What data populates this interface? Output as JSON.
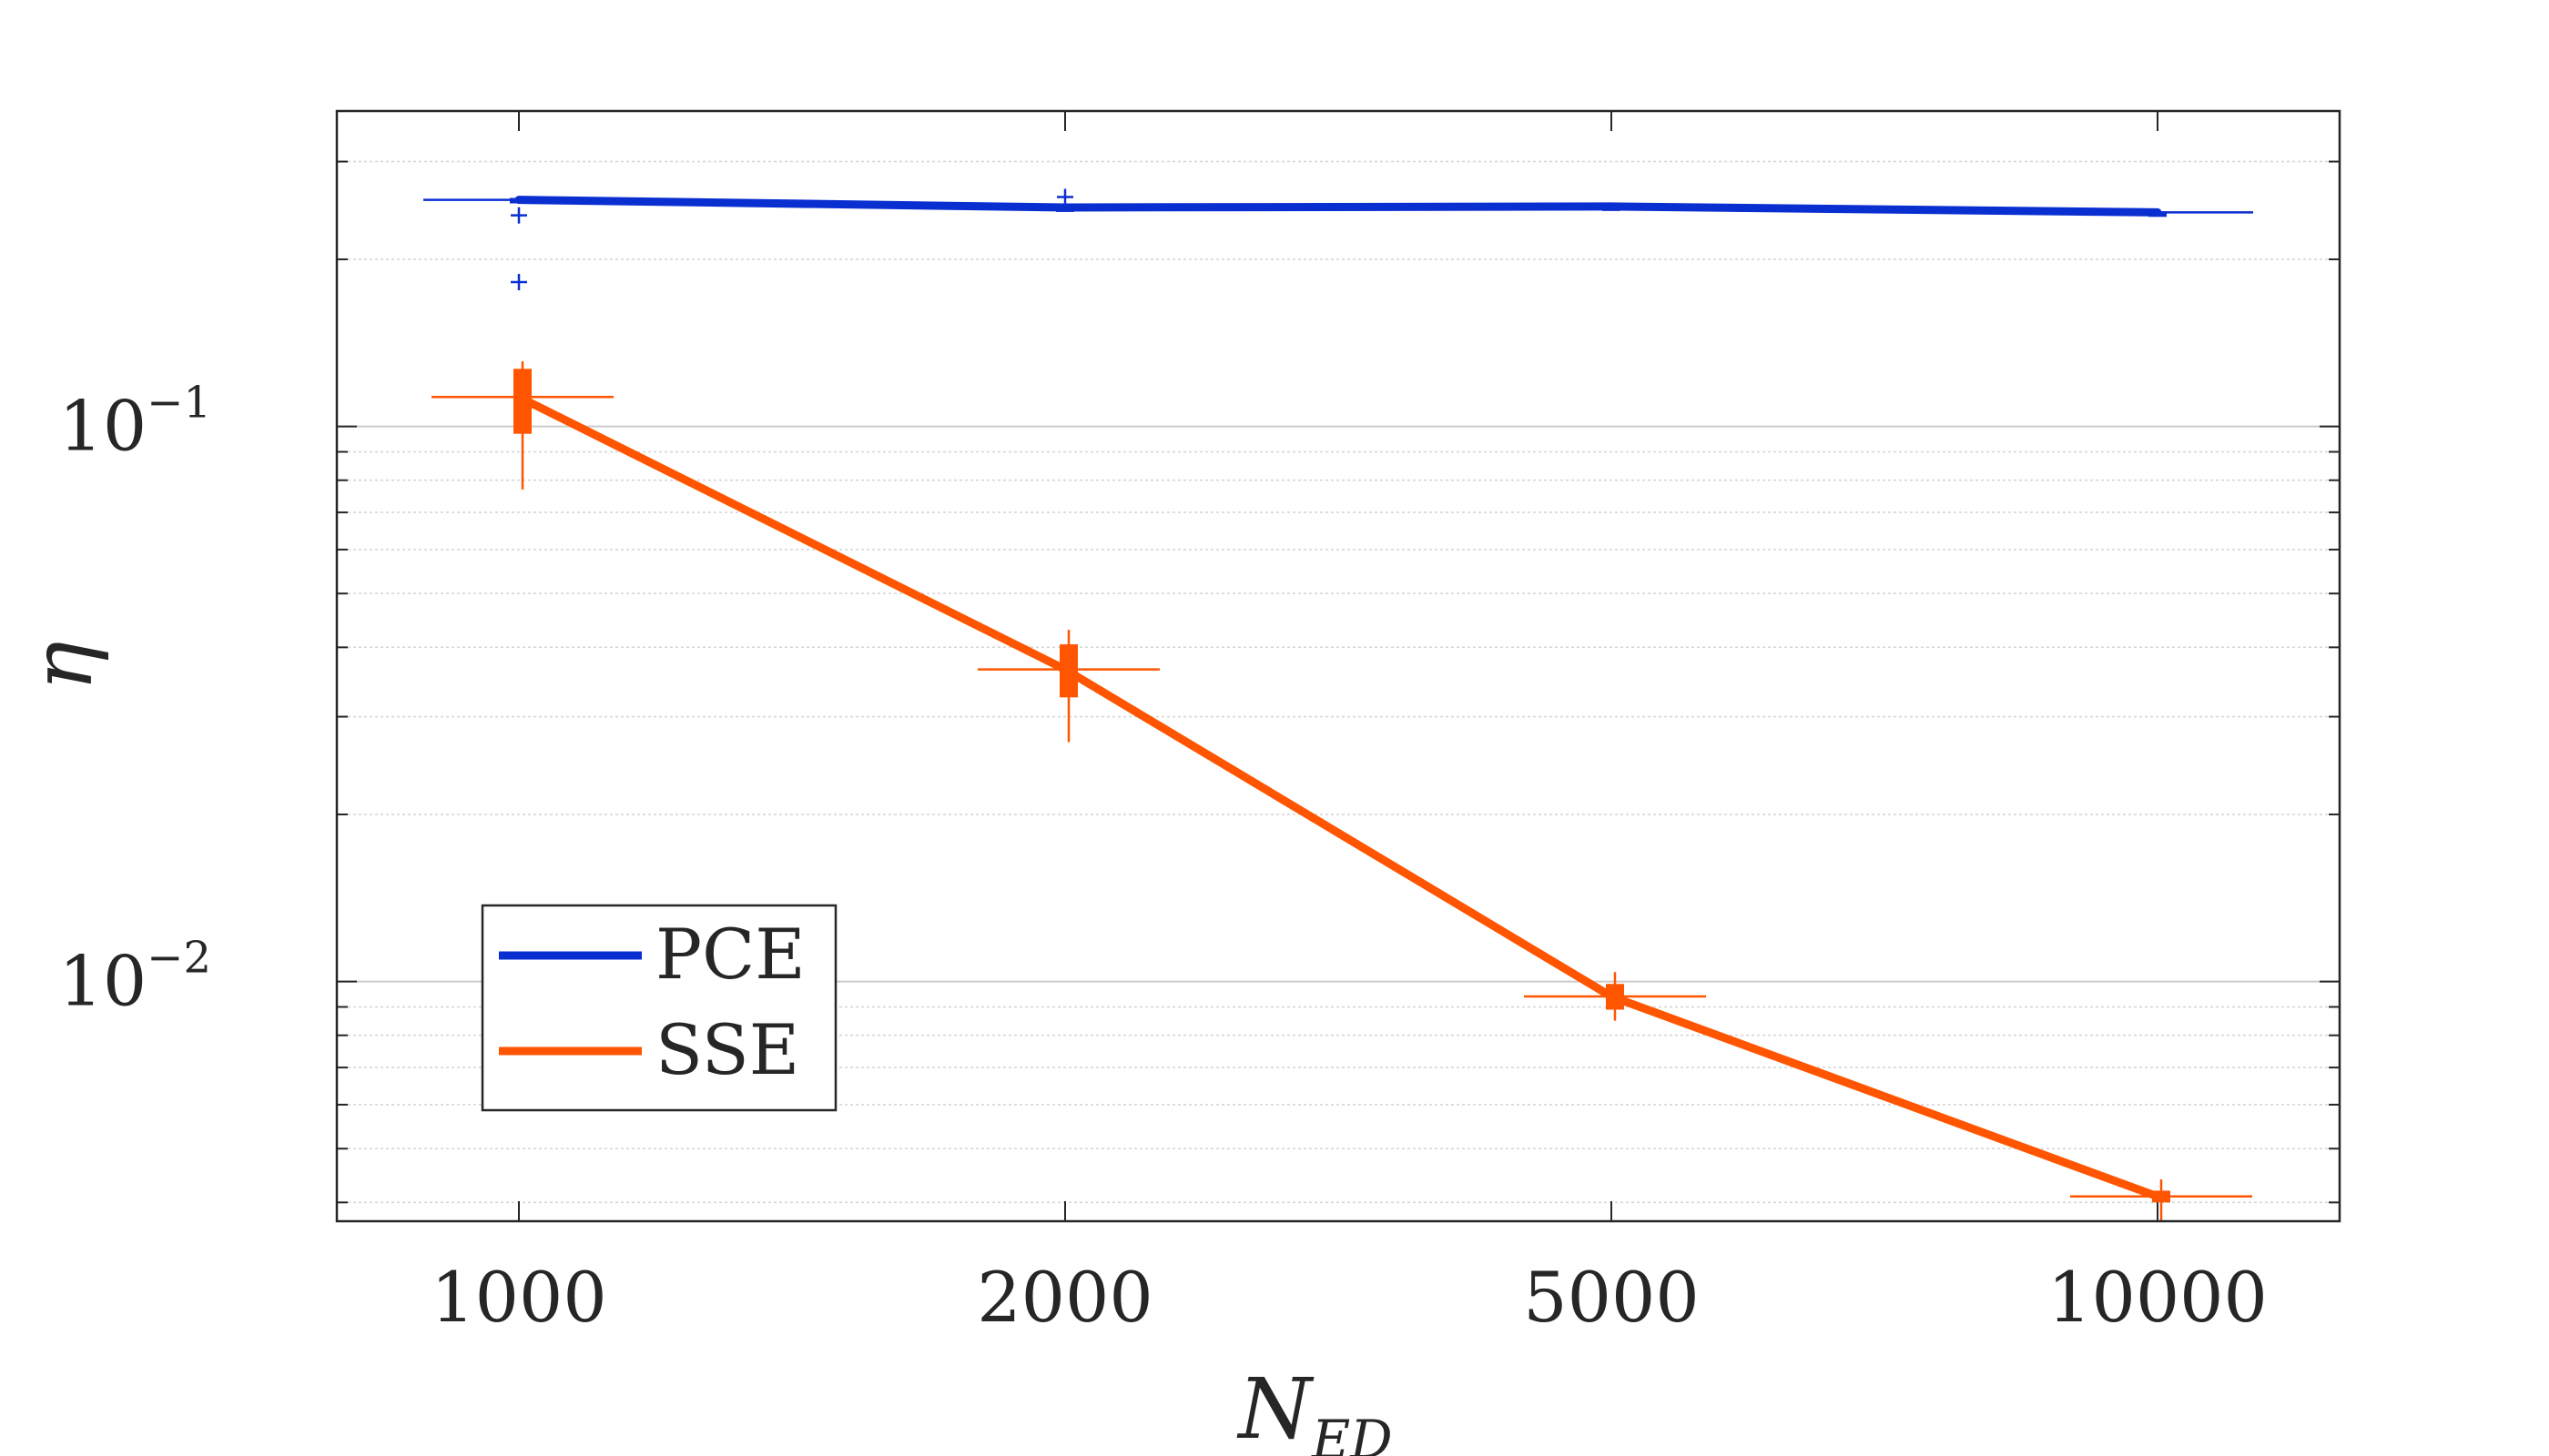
{
  "chart_data": {
    "type": "line",
    "xlabel": "N",
    "xlabel_subscript": "ED",
    "ylabel": "η",
    "y_scale": "log",
    "ylim": [
      0.0037,
      0.37
    ],
    "categories": [
      "1000",
      "2000",
      "5000",
      "10000"
    ],
    "y_ticks": [
      {
        "value": 0.1,
        "base": "10",
        "exp": "−1"
      },
      {
        "value": 0.01,
        "base": "10",
        "exp": "−2"
      }
    ],
    "grid": "y",
    "legend_position": "lower-left",
    "series": [
      {
        "name": "PCE",
        "color": "#0a2fd1",
        "values": [
          0.256,
          0.248,
          0.249,
          0.243
        ],
        "boxes": [
          {
            "q1": 0.254,
            "median": 0.256,
            "q3": 0.258,
            "whisker_low": 0.254,
            "whisker_high": 0.258,
            "outliers": [
              0.24,
              0.182
            ]
          },
          {
            "q1": 0.247,
            "median": 0.248,
            "q3": 0.249,
            "whisker_low": 0.247,
            "whisker_high": 0.249,
            "outliers": [
              0.259
            ]
          },
          {
            "q1": 0.248,
            "median": 0.249,
            "q3": 0.25,
            "whisker_low": 0.248,
            "whisker_high": 0.25,
            "outliers": []
          },
          {
            "q1": 0.242,
            "median": 0.243,
            "q3": 0.244,
            "whisker_low": 0.242,
            "whisker_high": 0.244,
            "outliers": []
          }
        ]
      },
      {
        "name": "SSE",
        "color": "#ff5500",
        "values": [
          0.113,
          0.0365,
          0.0094,
          0.0041
        ],
        "boxes": [
          {
            "q1": 0.097,
            "median": 0.113,
            "q3": 0.127,
            "whisker_low": 0.077,
            "whisker_high": 0.131,
            "outliers": []
          },
          {
            "q1": 0.0325,
            "median": 0.0365,
            "q3": 0.0405,
            "whisker_low": 0.027,
            "whisker_high": 0.043,
            "outliers": []
          },
          {
            "q1": 0.0089,
            "median": 0.0094,
            "q3": 0.0099,
            "whisker_low": 0.0085,
            "whisker_high": 0.0104,
            "outliers": []
          },
          {
            "q1": 0.004,
            "median": 0.0041,
            "q3": 0.0042,
            "whisker_low": 0.0037,
            "whisker_high": 0.0044,
            "outliers": []
          }
        ]
      }
    ]
  }
}
